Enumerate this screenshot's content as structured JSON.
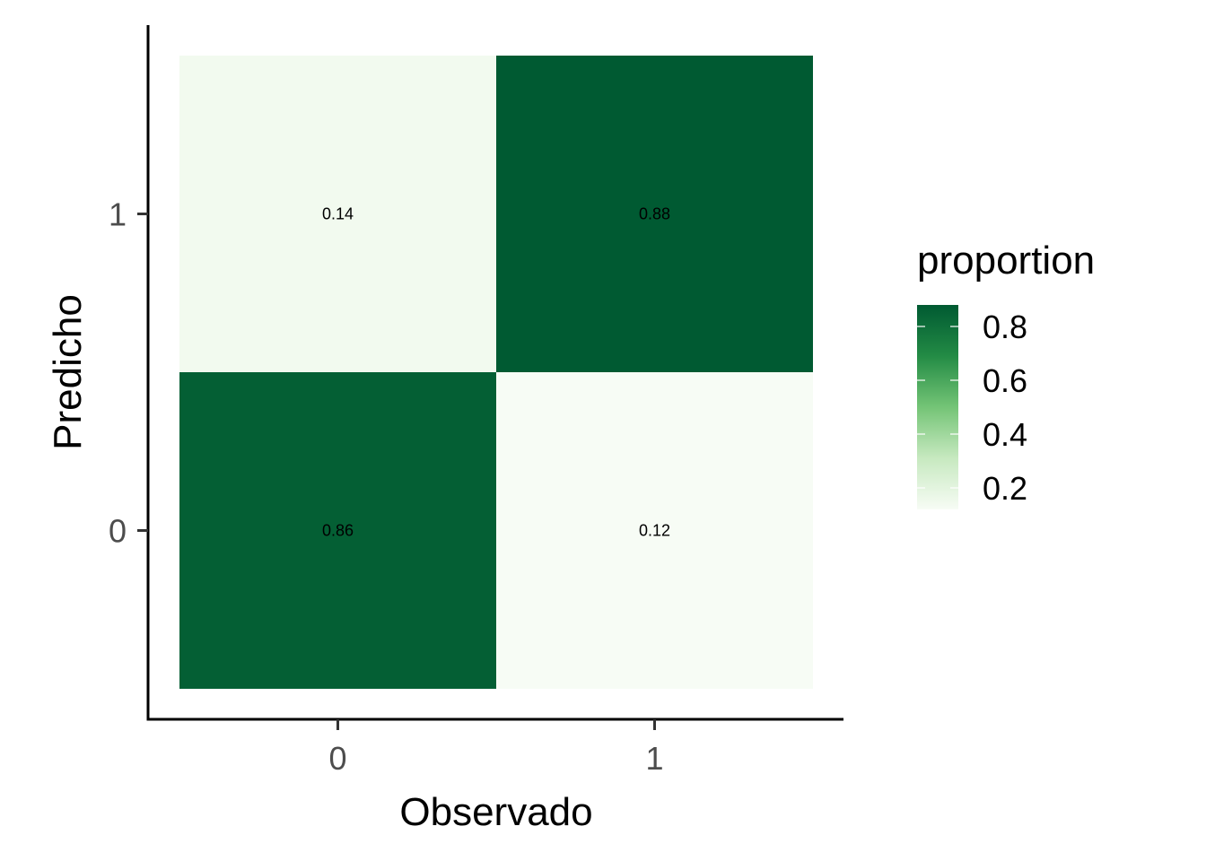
{
  "chart_data": {
    "type": "heatmap",
    "xlabel": "Observado",
    "ylabel": "Predicho",
    "x_categories": [
      "0",
      "1"
    ],
    "y_categories": [
      "0",
      "1"
    ],
    "cells": [
      {
        "x": "0",
        "y": "1",
        "value": 0.14,
        "label": "0.14"
      },
      {
        "x": "1",
        "y": "1",
        "value": 0.88,
        "label": "0.88"
      },
      {
        "x": "0",
        "y": "0",
        "value": 0.86,
        "label": "0.86"
      },
      {
        "x": "1",
        "y": "0",
        "value": 0.12,
        "label": "0.12"
      }
    ],
    "legend": {
      "title": "proportion",
      "placement": "right",
      "range": [
        0.12,
        0.88
      ],
      "ticks": [
        {
          "value": 0.2,
          "label": "0.2"
        },
        {
          "value": 0.4,
          "label": "0.4"
        },
        {
          "value": 0.6,
          "label": "0.6"
        },
        {
          "value": 0.8,
          "label": "0.8"
        }
      ],
      "low_color": "#f7fcf5",
      "high_color": "#005a32"
    },
    "grid": false
  }
}
